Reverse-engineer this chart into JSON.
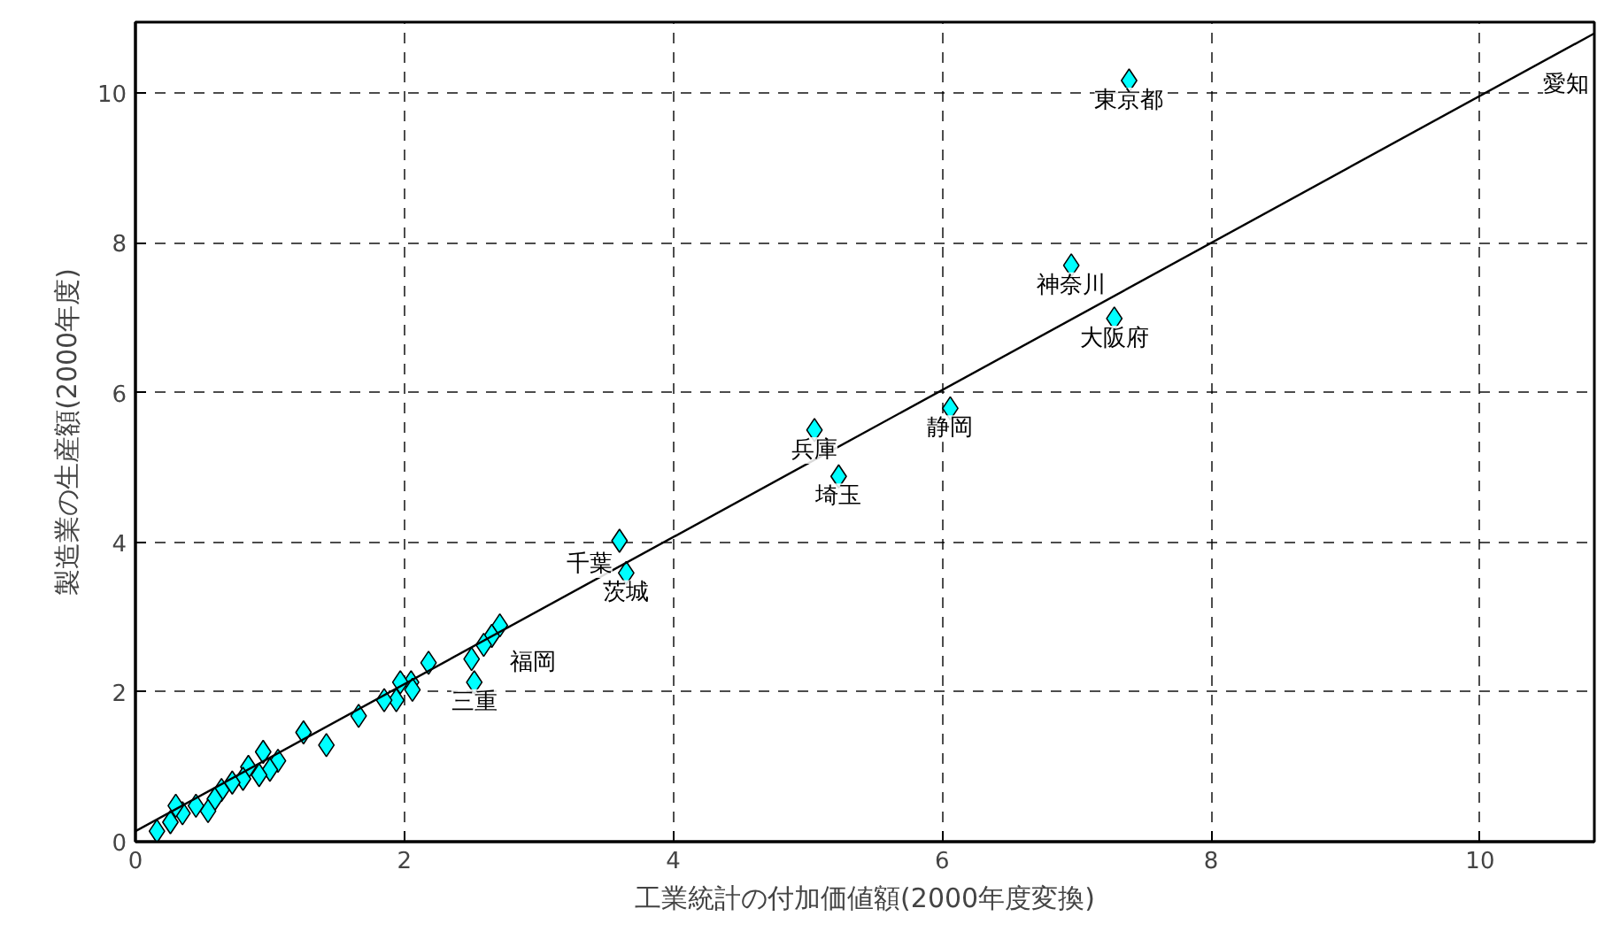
{
  "chart_data": {
    "type": "scatter",
    "xlabel": "工業統計の付加価値額(2000年度変換)",
    "ylabel": "製造業の生産額(2000年度)",
    "xlim": [
      0,
      10.85
    ],
    "ylim": [
      0,
      10.95
    ],
    "xticks": [
      0,
      2,
      4,
      6,
      8,
      10
    ],
    "yticks": [
      0,
      2,
      4,
      6,
      8,
      10
    ],
    "grid": true,
    "series": [
      {
        "marker": "diamond",
        "color": "#00ffff",
        "x": [
          7.39,
          6.96,
          7.28,
          6.06,
          5.05,
          5.23,
          3.6,
          3.65,
          2.71,
          2.65,
          2.59,
          2.5,
          2.52,
          2.18,
          2.05,
          1.97,
          2.06,
          1.94,
          1.85,
          1.66,
          1.42,
          1.25,
          1.06,
          0.95,
          1.0,
          0.92,
          0.84,
          0.8,
          0.72,
          0.64,
          0.59,
          0.54,
          0.45,
          0.35,
          0.3,
          0.26,
          0.16
        ],
        "values": [
          10.17,
          7.7,
          6.99,
          5.79,
          5.5,
          4.88,
          4.02,
          3.59,
          2.89,
          2.75,
          2.63,
          2.44,
          2.13,
          2.39,
          2.13,
          2.13,
          2.03,
          1.89,
          1.89,
          1.68,
          1.29,
          1.46,
          1.08,
          1.2,
          0.96,
          0.89,
          1.0,
          0.84,
          0.79,
          0.69,
          0.57,
          0.41,
          0.48,
          0.38,
          0.48,
          0.26,
          0.14
        ]
      },
      {
        "type": "line",
        "color": "#000000",
        "x": [
          0,
          10.85
        ],
        "values": [
          0.14,
          10.8
        ]
      }
    ],
    "annotations": [
      {
        "text": "東京都",
        "x": 7.39,
        "y": 10.17
      },
      {
        "text": "神奈川",
        "x": 6.96,
        "y": 7.7
      },
      {
        "text": "大阪府",
        "x": 7.28,
        "y": 6.99
      },
      {
        "text": "静岡",
        "x": 6.06,
        "y": 5.79
      },
      {
        "text": "兵庫",
        "x": 5.05,
        "y": 5.5
      },
      {
        "text": "埼玉",
        "x": 5.23,
        "y": 4.88
      },
      {
        "text": "千葉",
        "x": 3.6,
        "y": 4.02
      },
      {
        "text": "茨城",
        "x": 3.65,
        "y": 3.59
      },
      {
        "text": "福岡",
        "x": 2.65,
        "y": 2.75
      },
      {
        "text": "三重",
        "x": 2.52,
        "y": 2.13
      },
      "愛知"
    ]
  }
}
